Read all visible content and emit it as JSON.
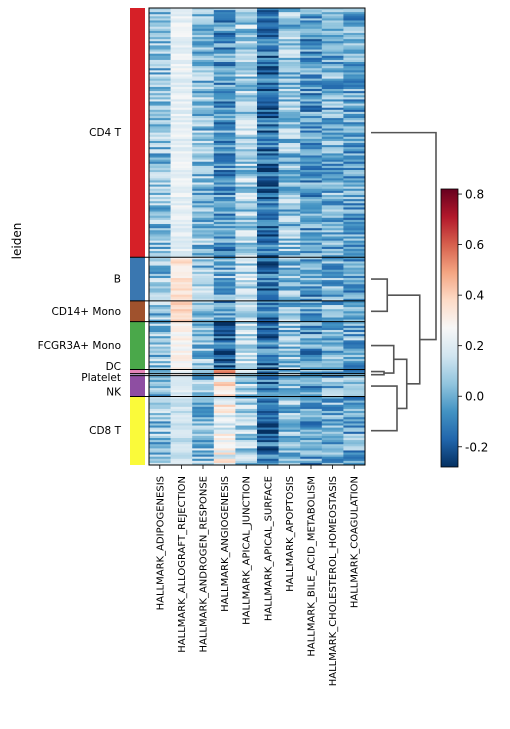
{
  "chart_data": {
    "type": "heatmap",
    "ylabel": "leiden",
    "groups": [
      {
        "name": "CD4 T",
        "color": "#d62027",
        "cells": 120
      },
      {
        "name": "B",
        "color": "#3a77b0",
        "cells": 21
      },
      {
        "name": "CD14+ Mono",
        "color": "#a0522d",
        "cells": 10
      },
      {
        "name": "FCGR3A+ Mono",
        "color": "#4aa84a",
        "cells": 23
      },
      {
        "name": "DC",
        "color": "#e385b7",
        "cells": 2
      },
      {
        "name": "Platelet",
        "color": "#bda6d3",
        "cells": 1
      },
      {
        "name": "NK",
        "color": "#8e4ea2",
        "cells": 10
      },
      {
        "name": "CD8 T",
        "color": "#fafa3a",
        "cells": 33
      }
    ],
    "genes": [
      "HALLMARK_ADIPOGENESIS",
      "HALLMARK_ALLOGRAFT_REJECTION",
      "HALLMARK_ANDROGEN_RESPONSE",
      "HALLMARK_ANGIOGENESIS",
      "HALLMARK_APICAL_JUNCTION",
      "HALLMARK_APICAL_SURFACE",
      "HALLMARK_APOPTOSIS",
      "HALLMARK_BILE_ACID_METABOLISM",
      "HALLMARK_CHOLESTEROL_HOMEOSTASIS",
      "HALLMARK_COAGULATION"
    ],
    "mean_scores": [
      [
        0.05,
        0.22,
        0.05,
        -0.05,
        0.1,
        -0.15,
        0.05,
        -0.05,
        0.0,
        -0.02
      ],
      [
        0.05,
        0.35,
        0.05,
        0.02,
        0.12,
        -0.15,
        0.05,
        -0.05,
        0.0,
        -0.02
      ],
      [
        0.05,
        0.4,
        0.05,
        -0.05,
        0.1,
        -0.12,
        0.05,
        -0.05,
        0.0,
        0.0
      ],
      [
        0.05,
        0.28,
        0.05,
        -0.15,
        0.12,
        -0.12,
        0.05,
        -0.05,
        0.0,
        0.0
      ],
      [
        0.05,
        0.25,
        0.05,
        0.5,
        0.12,
        -0.12,
        0.05,
        -0.05,
        0.0,
        0.0
      ],
      [
        0.05,
        0.25,
        0.05,
        0.3,
        0.12,
        -0.12,
        0.05,
        -0.05,
        0.0,
        0.0
      ],
      [
        0.05,
        0.2,
        0.05,
        0.3,
        0.1,
        -0.12,
        0.05,
        -0.05,
        0.0,
        0.0
      ],
      [
        0.05,
        0.15,
        0.05,
        0.25,
        0.1,
        -0.15,
        0.05,
        -0.05,
        0.0,
        -0.02
      ]
    ],
    "colorbar": {
      "colormap": "RdBu_r",
      "vmin": -0.28,
      "vmax": 0.82,
      "ticks": [
        "-0.2",
        "0.0",
        "0.2",
        "0.4",
        "0.6",
        "0.8"
      ]
    },
    "dendrogram": {
      "leaf_order": [
        "CD4 T",
        "B",
        "CD14+ Mono",
        "FCGR3A+ Mono",
        "DC",
        "Platelet",
        "NK",
        "CD8 T"
      ],
      "merges": [
        {
          "left": "DC",
          "right": "Platelet",
          "height": 0.2
        },
        {
          "left": "FCGR3A+ Mono",
          "right": "DC+Platelet",
          "height": 0.35
        },
        {
          "left": "NK",
          "right": "CD8 T",
          "height": 0.4
        },
        {
          "left": "FCGR3A+ Mono+DC+Platelet",
          "right": "NK+CD8 T",
          "height": 0.55
        },
        {
          "left": "B",
          "right": "CD14+ Mono",
          "height": 0.25
        },
        {
          "left": "B+CD14+ Mono",
          "right": "Myeloid+NK+CD8",
          "height": 0.75
        },
        {
          "left": "CD4 T",
          "right": "rest",
          "height": 1.0
        }
      ]
    }
  }
}
